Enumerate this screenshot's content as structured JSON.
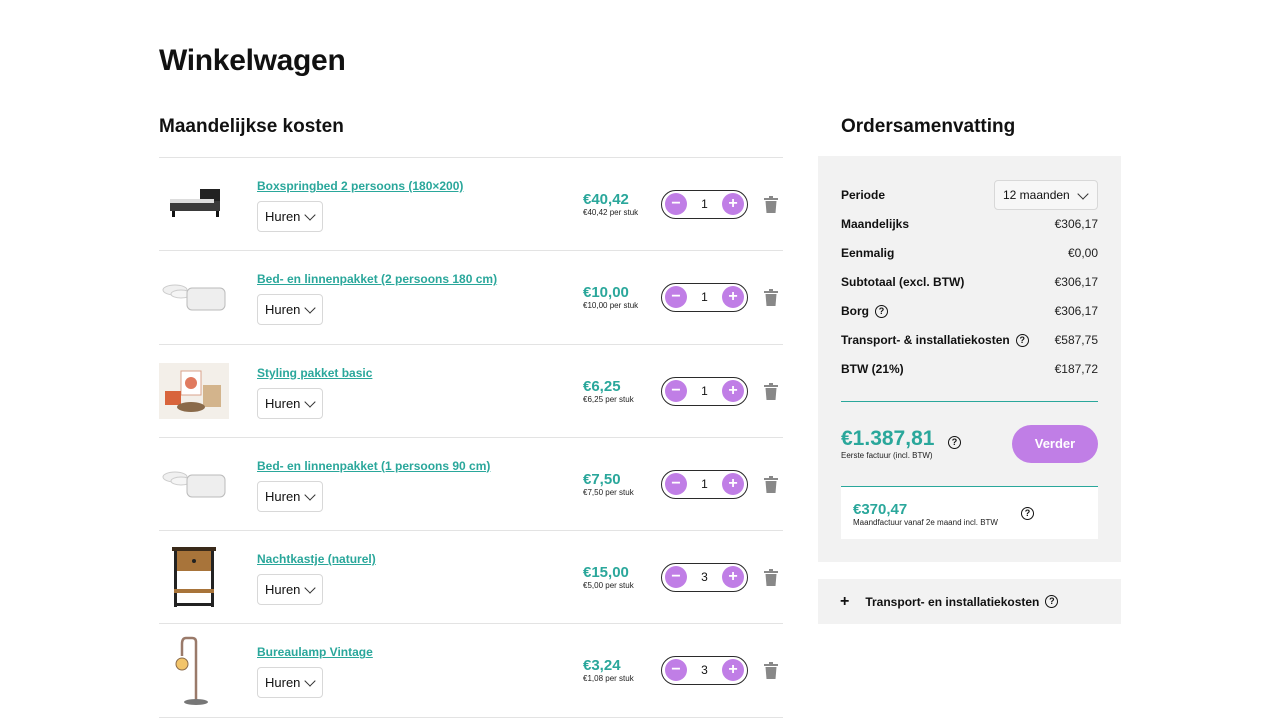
{
  "page_title": "Winkelwagen",
  "cart": {
    "section_title": "Maandelijkse kosten",
    "items": [
      {
        "name": "Boxspringbed 2 persoons (180×200)",
        "option": "Huren",
        "price": "€40,42",
        "unit_price": "€40,42 per stuk",
        "qty": "1",
        "image": "bed"
      },
      {
        "name": "Bed- en linnenpakket (2 persoons 180 cm)",
        "option": "Huren",
        "price": "€10,00",
        "unit_price": "€10,00 per stuk",
        "qty": "1",
        "image": "linen"
      },
      {
        "name": "Styling pakket basic",
        "option": "Huren",
        "price": "€6,25",
        "unit_price": "€6,25 per stuk",
        "qty": "1",
        "image": "styling"
      },
      {
        "name": "Bed- en linnenpakket (1 persoons 90 cm)",
        "option": "Huren",
        "price": "€7,50",
        "unit_price": "€7,50 per stuk",
        "qty": "1",
        "image": "linen"
      },
      {
        "name": "Nachtkastje (naturel)",
        "option": "Huren",
        "price": "€15,00",
        "unit_price": "€5,00 per stuk",
        "qty": "3",
        "image": "nightstand"
      },
      {
        "name": "Bureaulamp Vintage",
        "option": "Huren",
        "price": "€3,24",
        "unit_price": "€1,08 per stuk",
        "qty": "3",
        "image": "lamp"
      }
    ],
    "minus_symbol": "−",
    "plus_symbol": "+"
  },
  "summary": {
    "title": "Ordersamenvatting",
    "period_label": "Periode",
    "period_value": "12 maanden",
    "rows": [
      {
        "label": "Maandelijks",
        "value": "€306,17",
        "help": false
      },
      {
        "label": "Eenmalig",
        "value": "€0,00",
        "help": false
      },
      {
        "label": "Subtotaal (excl. BTW)",
        "value": "€306,17",
        "help": false
      },
      {
        "label": "Borg",
        "value": "€306,17",
        "help": true
      },
      {
        "label": "Transport- & installatiekosten",
        "value": "€587,75",
        "help": true
      },
      {
        "label": "BTW (21%)",
        "value": "€187,72",
        "help": false
      }
    ],
    "total_amount": "€1.387,81",
    "total_sub": "Eerste factuur (incl. BTW)",
    "cta_label": "Verder",
    "monthly_amount": "€370,47",
    "monthly_sub": "Maandfactuur vanaf 2e maand incl. BTW",
    "help_symbol": "?"
  },
  "transport": {
    "plus_symbol": "+",
    "label": "Transport- en installatiekosten"
  },
  "colors": {
    "accent": "#2aa79b",
    "button": "#c07ee6",
    "panel": "#f2f2f2"
  }
}
